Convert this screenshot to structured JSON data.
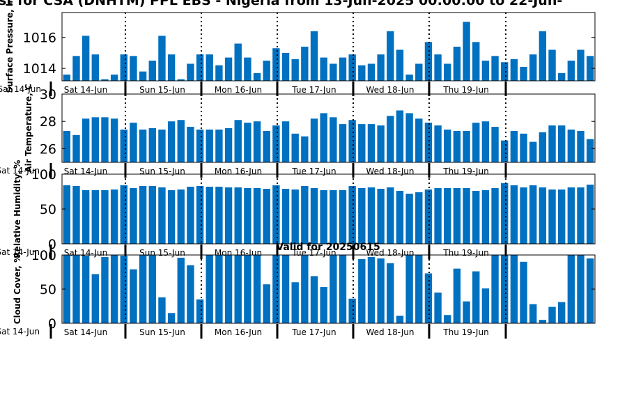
{
  "chart": {
    "title": "st for CSA (DNHTM) PPL EBS - Nigeria from 13-Jun-2025 00:00:00 to 22-Jun-",
    "subtitle": "Valid for 20250615",
    "bar_color": "#0070c0"
  },
  "chart_data": [
    {
      "type": "bar",
      "ylabel": "Surface Pressure, h",
      "ylim": [
        1013.2,
        1017.6
      ],
      "yticks": [
        1014,
        1016
      ],
      "day_labels": [
        "Sat 14-Jun",
        "Sun 15-Jun",
        "Mon 16-Jun",
        "Tue 17-Jun",
        "Wed 18-Jun",
        "Thu 19-Jun"
      ],
      "left_tick_label": "Sat 14-Jun",
      "values": [
        1013.6,
        1014.8,
        1016.1,
        1014.9,
        1013.3,
        1013.6,
        1014.9,
        1014.8,
        1013.8,
        1014.5,
        1016.1,
        1014.9,
        1013.3,
        1014.3,
        1014.9,
        1014.9,
        1014.2,
        1014.7,
        1015.6,
        1014.7,
        1013.7,
        1014.5,
        1015.3,
        1015.0,
        1014.6,
        1015.4,
        1016.4,
        1014.7,
        1014.3,
        1014.7,
        1014.9,
        1014.2,
        1014.3,
        1014.9,
        1016.4,
        1015.2,
        1013.6,
        1014.3,
        1015.7,
        1014.9,
        1014.3,
        1015.4,
        1017.0,
        1015.7,
        1014.5,
        1014.8,
        1014.4,
        1014.6,
        1014.1,
        1014.9,
        1016.4,
        1015.2,
        1013.7,
        1014.5,
        1015.2,
        1014.8
      ]
    },
    {
      "type": "bar",
      "ylabel": "Air Temperature, C",
      "ylim": [
        25.0,
        30.0
      ],
      "yticks": [
        26,
        28,
        30
      ],
      "day_labels": [
        "Sat 14-Jun",
        "Sun 15-Jun",
        "Mon 16-Jun",
        "Tue 17-Jun",
        "Wed 18-Jun",
        "Thu 19-Jun"
      ],
      "left_tick_label": "Sat 14-Jun",
      "values": [
        27.3,
        27.0,
        28.2,
        28.3,
        28.3,
        28.2,
        27.4,
        27.9,
        27.4,
        27.5,
        27.4,
        28.0,
        28.1,
        27.6,
        27.4,
        27.4,
        27.4,
        27.5,
        28.1,
        27.9,
        28.0,
        27.3,
        27.7,
        28.0,
        27.1,
        26.9,
        28.2,
        28.6,
        28.3,
        27.8,
        28.1,
        27.8,
        27.8,
        27.7,
        28.4,
        28.8,
        28.6,
        28.2,
        27.9,
        27.7,
        27.4,
        27.3,
        27.3,
        27.9,
        28.0,
        27.6,
        26.6,
        27.3,
        27.1,
        26.5,
        27.2,
        27.7,
        27.7,
        27.4,
        27.3,
        26.7
      ]
    },
    {
      "type": "bar",
      "ylabel": "Relative Humidity, %",
      "ylim": [
        0,
        100
      ],
      "yticks": [
        0,
        50,
        100
      ],
      "day_labels": [
        "Sat 14-Jun",
        "Sun 15-Jun",
        "Mon 16-Jun",
        "Tue 17-Jun",
        "Wed 18-Jun",
        "Thu 19-Jun"
      ],
      "left_tick_label": "Sat 14-Jun",
      "values": [
        84,
        83,
        77,
        77,
        77,
        78,
        84,
        80,
        83,
        83,
        81,
        77,
        78,
        82,
        83,
        82,
        82,
        81,
        81,
        80,
        80,
        79,
        84,
        79,
        78,
        83,
        80,
        77,
        77,
        77,
        83,
        80,
        81,
        79,
        81,
        76,
        72,
        74,
        78,
        80,
        80,
        80,
        80,
        76,
        77,
        80,
        87,
        84,
        81,
        84,
        81,
        78,
        78,
        81,
        81,
        85
      ]
    },
    {
      "type": "bar",
      "ylabel": "Cloud Cover, %",
      "ylim": [
        0,
        100
      ],
      "yticks": [
        0,
        50,
        100
      ],
      "day_labels": [
        "Sat 14-Jun",
        "Sun 15-Jun",
        "Mon 16-Jun",
        "Tue 17-Jun",
        "Wed 18-Jun",
        "Thu 19-Jun"
      ],
      "left_tick_label": "Sat 14-Jun",
      "values": [
        100,
        100,
        99,
        72,
        97,
        100,
        99,
        79,
        100,
        100,
        38,
        15,
        96,
        85,
        35,
        100,
        100,
        100,
        100,
        100,
        100,
        57,
        100,
        100,
        60,
        100,
        69,
        53,
        100,
        100,
        36,
        94,
        97,
        95,
        88,
        11,
        100,
        100,
        73,
        45,
        12,
        80,
        32,
        76,
        51,
        100,
        100,
        100,
        90,
        28,
        5,
        24,
        31,
        100,
        100,
        95
      ]
    }
  ]
}
